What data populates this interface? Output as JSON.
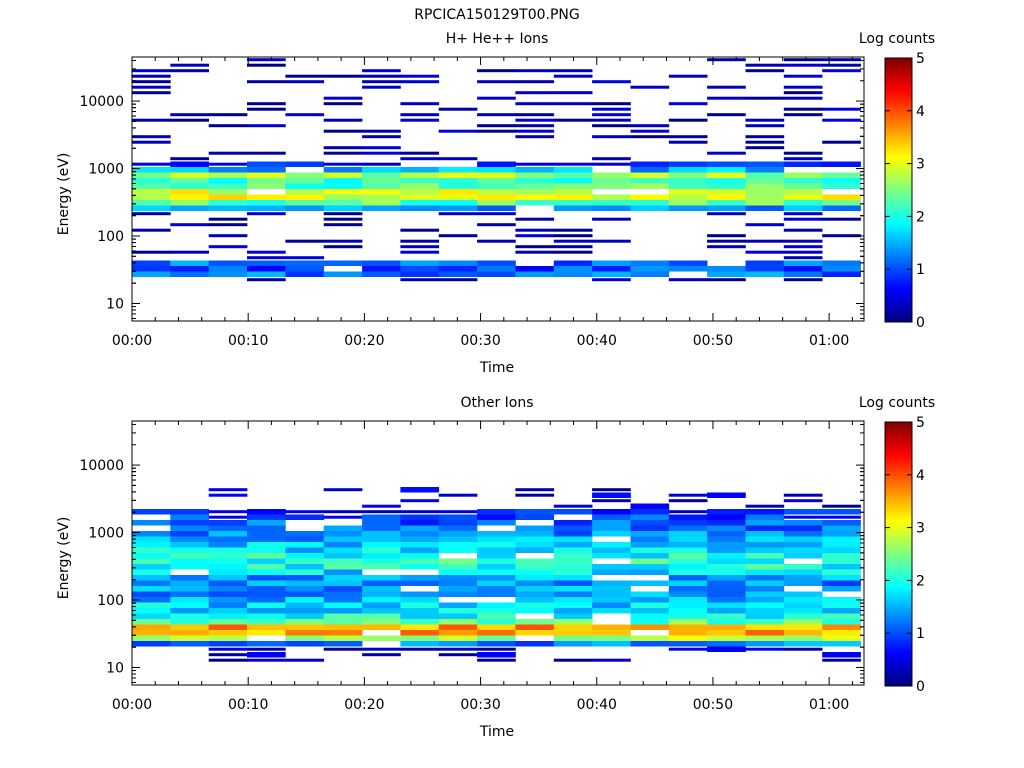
{
  "figure_title": "RPCICA150129T00.PNG",
  "colormap": [
    "#00007f",
    "#0000ff",
    "#007fff",
    "#00ffff",
    "#7fff7f",
    "#ffff00",
    "#ff7f00",
    "#ff0000",
    "#7f0000"
  ],
  "chart_data": [
    {
      "type": "heatmap",
      "title": "H+ He++ Ions",
      "xlabel": "Time",
      "ylabel": "Energy (eV)",
      "xlim_min": [
        0,
        63
      ],
      "ylim_ev": [
        5.5,
        45000
      ],
      "yscale": "log",
      "x_tick_values": [
        0,
        10,
        20,
        30,
        40,
        50,
        60
      ],
      "x_tick_labels": [
        "00:00",
        "00:10",
        "00:20",
        "00:30",
        "00:40",
        "00:50",
        "01:00"
      ],
      "y_tick_values": [
        10,
        100,
        1000,
        10000
      ],
      "y_tick_labels": [
        "10",
        "100",
        "1000",
        "10000"
      ],
      "colorbar": {
        "label": "Log counts",
        "range": [
          0,
          5
        ],
        "tick_labels": [
          "0",
          "1",
          "2",
          "3",
          "4",
          "5"
        ]
      },
      "profile": {
        "energies_ev": [
          12,
          20,
          28,
          33,
          40,
          50,
          60,
          70,
          90,
          110,
          140,
          180,
          230,
          280,
          330,
          400,
          480,
          560,
          650,
          750,
          850,
          950,
          1100,
          1300,
          1600,
          1900,
          2300,
          3000,
          4000,
          5500,
          7000,
          9000,
          12000,
          16000,
          22000,
          30000,
          40000
        ],
        "log_counts": [
          0,
          0,
          1.3,
          1.0,
          1.2,
          0,
          0,
          0,
          0,
          0,
          0,
          0,
          0.8,
          1.8,
          2.6,
          3.2,
          2.8,
          2.2,
          2.0,
          2.9,
          2.4,
          1.5,
          0.8,
          0.4,
          0.3,
          0.2,
          0.1,
          0.1,
          0.1,
          0.1,
          0.1,
          0.1,
          0.1,
          0.1,
          0.1,
          0.1,
          0.1
        ],
        "noise_energy_range_ev": [
          20,
          45000
        ],
        "noise_level_range": [
          0,
          0.5
        ]
      }
    },
    {
      "type": "heatmap",
      "title": "Other Ions",
      "xlabel": "Time",
      "ylabel": "Energy (eV)",
      "xlim_min": [
        0,
        63
      ],
      "ylim_ev": [
        5.5,
        45000
      ],
      "yscale": "log",
      "x_tick_values": [
        0,
        10,
        20,
        30,
        40,
        50,
        60
      ],
      "x_tick_labels": [
        "00:00",
        "00:10",
        "00:20",
        "00:30",
        "00:40",
        "00:50",
        "01:00"
      ],
      "y_tick_values": [
        10,
        100,
        1000,
        10000
      ],
      "y_tick_labels": [
        "10",
        "100",
        "1000",
        "10000"
      ],
      "colorbar": {
        "label": "Log counts",
        "range": [
          0,
          5
        ],
        "tick_labels": [
          "0",
          "1",
          "2",
          "3",
          "4",
          "5"
        ]
      },
      "profile": {
        "energies_ev": [
          12,
          20,
          25,
          30,
          35,
          40,
          45,
          55,
          65,
          75,
          90,
          110,
          130,
          160,
          190,
          230,
          280,
          330,
          400,
          480,
          560,
          650,
          750,
          850,
          950,
          1100,
          1300,
          1600,
          1900,
          2300,
          3000,
          4000,
          5000
        ],
        "log_counts": [
          0,
          0.2,
          2.2,
          3.3,
          3.8,
          3.6,
          2.4,
          2.0,
          1.8,
          1.7,
          1.6,
          1.4,
          1.3,
          1.4,
          1.2,
          1.5,
          1.9,
          2.0,
          2.1,
          1.9,
          1.7,
          1.6,
          1.5,
          1.4,
          1.3,
          1.2,
          1.1,
          1.0,
          0.8,
          0.4,
          0.2,
          0.1,
          0.1
        ],
        "noise_energy_range_ev": [
          12,
          5000
        ],
        "noise_level_range": [
          0,
          0.7
        ]
      }
    }
  ]
}
